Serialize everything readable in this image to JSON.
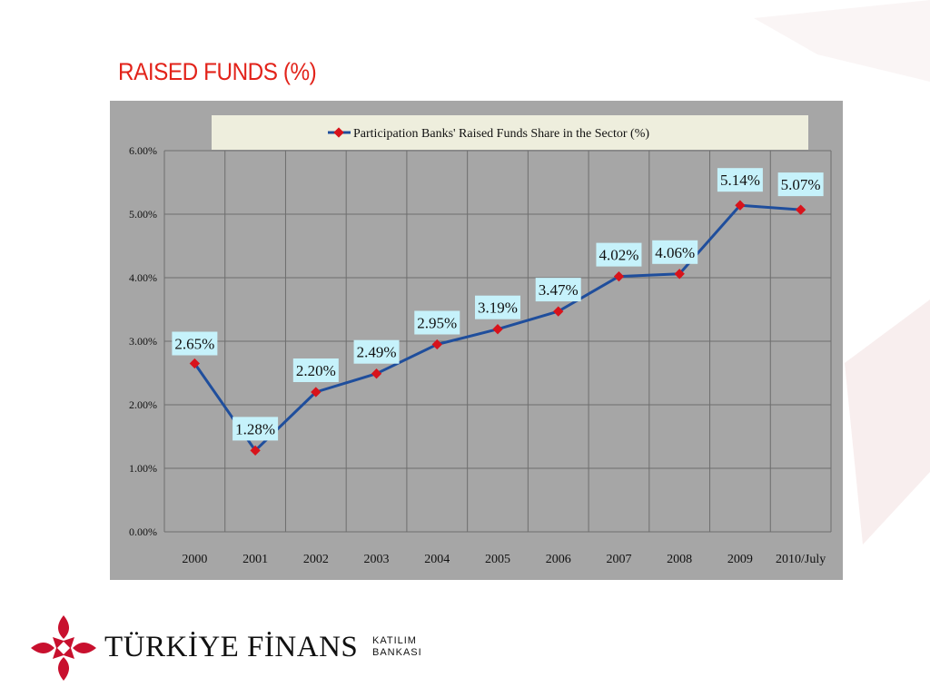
{
  "page": {
    "title": "RAISED FUNDS (%)"
  },
  "brand": {
    "name": "TÜRKİYE FİNANS",
    "sub_line1": "KATILIM",
    "sub_line2": "BANKASI",
    "colors": {
      "brand_red": "#c8102e",
      "title_red": "#e2231a"
    }
  },
  "chart_data": {
    "type": "line",
    "categories": [
      "2000",
      "2001",
      "2002",
      "2003",
      "2004",
      "2005",
      "2006",
      "2007",
      "2008",
      "2009",
      "2010/July"
    ],
    "series": [
      {
        "name": "Participation Banks' Raised Funds Share in the Sector (%)",
        "values": [
          2.65,
          1.28,
          2.2,
          2.49,
          2.95,
          3.19,
          3.47,
          4.02,
          4.06,
          5.14,
          5.07
        ],
        "labels": [
          "2.65%",
          "1.28%",
          "2.20%",
          "2.49%",
          "2.95%",
          "3.19%",
          "3.47%",
          "4.02%",
          "4.06%",
          "5.14%",
          "5.07%"
        ],
        "line_color": "#1f4e9c",
        "marker_color": "#d8131b"
      }
    ],
    "ylim": [
      0,
      6
    ],
    "yticks": [
      "0.00%",
      "1.00%",
      "2.00%",
      "3.00%",
      "4.00%",
      "5.00%",
      "6.00%"
    ],
    "grid": true,
    "legend_position": "top",
    "colors": {
      "plot_background": "#a6a6a6",
      "legend_background": "#eeeedd",
      "data_label_background": "#c6f2fb",
      "grid": "#6e6e6e"
    }
  }
}
